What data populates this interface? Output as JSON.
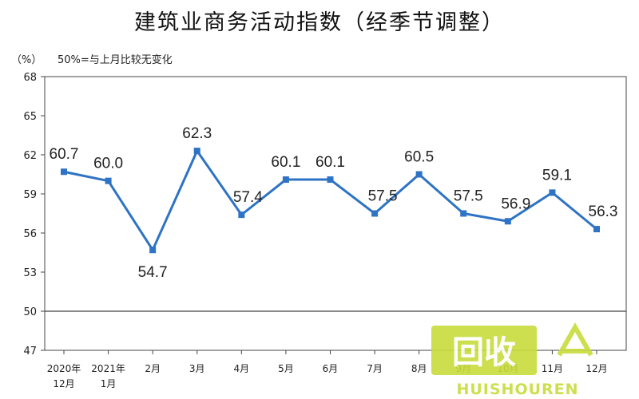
{
  "chart_data": {
    "type": "line",
    "title": "建筑业商务活动指数（经季节调整）",
    "ylabel": "（%）",
    "note": "50%=与上月比较无变化",
    "ylim": [
      47,
      68
    ],
    "yticks": [
      47,
      50,
      53,
      56,
      59,
      62,
      65,
      68
    ],
    "reference_line": 50,
    "grid": false,
    "categories": [
      [
        "2020年",
        "12月"
      ],
      [
        "2021年",
        "1月"
      ],
      [
        "2月"
      ],
      [
        "3月"
      ],
      [
        "4月"
      ],
      [
        "5月"
      ],
      [
        "6月"
      ],
      [
        "7月"
      ],
      [
        "8月"
      ],
      [
        "9月"
      ],
      [
        "10月"
      ],
      [
        "11月"
      ],
      [
        "12月"
      ]
    ],
    "series": [
      {
        "values": [
          60.7,
          60.0,
          54.7,
          62.3,
          57.4,
          60.1,
          60.1,
          57.5,
          60.5,
          57.5,
          56.9,
          59.1,
          56.3
        ],
        "labels": [
          "60.7",
          "60.0",
          "54.7",
          "62.3",
          "57.4",
          "60.1",
          "60.1",
          "57.5",
          "60.5",
          "57.5",
          "56.9",
          "59.1",
          "56.3"
        ],
        "color": "#2e73c4"
      }
    ]
  },
  "watermark": {
    "main": "回收",
    "sub": "HUISHOUREN",
    "color": "#c8dc3c"
  }
}
